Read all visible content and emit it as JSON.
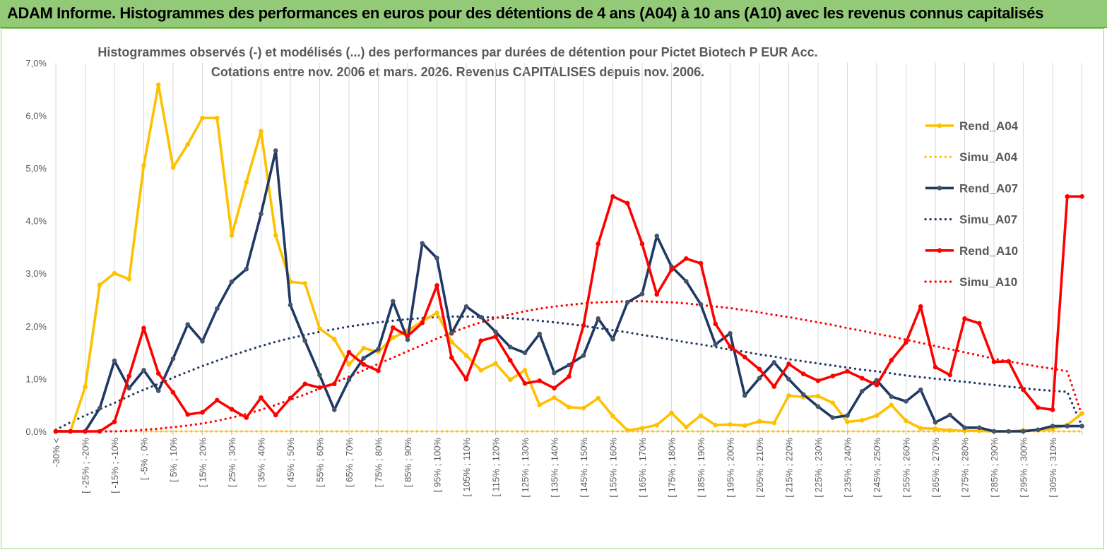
{
  "banner": {
    "title": "ADAM Informe. Histogrammes des performances en euros pour des détentions de 4 ans (A04) à 10 ans (A10) avec les revenus connus capitalisés"
  },
  "chart_data": {
    "type": "line",
    "title_line1": "Histogrammes observés (-) et modélisés (...)  des performances par durées de détention pour Pictet Biotech P EUR Acc.",
    "title_line2": "Cotations entre nov. 2006 et mars. 2026.  Revenus CAPITALISES depuis nov. 2006.",
    "xlabel": "",
    "ylabel": "",
    "ylim": [
      0,
      7
    ],
    "y_ticks": [
      "0,0%",
      "1,0%",
      "2,0%",
      "3,0%",
      "4,0%",
      "5,0%",
      "6,0%",
      "7,0%"
    ],
    "grid": "vertical",
    "legend_position": "right",
    "x_labels": [
      "-30% <",
      "[ -25% ; -20%",
      "[ -15% ; -10%",
      "[ -5% ; 0%",
      "[ 5% ; 10%",
      "[ 15% ; 20%",
      "[ 25% ; 30%",
      "[ 35% ; 40%",
      "[ 45% ; 50%",
      "[ 55% ; 60%",
      "[ 65% ; 70%",
      "[ 75% ; 80%",
      "[ 85% ; 90%",
      "[ 95% ; 100%",
      "[ 105% ; 110%",
      "[ 115% ; 120%",
      "[ 125% ; 130%",
      "[ 135% ; 140%",
      "[ 145% ; 150%",
      "[ 155% ; 160%",
      "[ 165% ; 170%",
      "[ 175% ; 180%",
      "[ 185% ; 190%",
      "[ 195% ; 200%",
      "[ 205% ; 210%",
      "[ 215% ; 220%",
      "[ 225% ; 230%",
      "[ 235% ; 240%",
      "[ 245% ; 250%",
      "[ 255% ; 260%",
      "[ 265% ; 270%",
      "[ 275% ; 280%",
      "[ 285% ; 290%",
      "[ 295% ; 300%",
      "[ 305% ; 310%"
    ],
    "series": [
      {
        "name": "Rend_A04",
        "style": "solid",
        "color": "#ffc000",
        "values": [
          0,
          0,
          0.84,
          2.78,
          3,
          2.89,
          5.05,
          6.58,
          5.01,
          5.45,
          5.95,
          5.95,
          3.72,
          4.73,
          5.7,
          3.72,
          2.84,
          2.81,
          1.95,
          1.75,
          1.27,
          1.58,
          1.51,
          1.78,
          1.91,
          2.09,
          2.25,
          1.7,
          1.44,
          1.16,
          1.29,
          0.98,
          1.16,
          0.5,
          0.64,
          0.46,
          0.44,
          0.63,
          0.29,
          0.02,
          0.06,
          0.12,
          0.35,
          0.08,
          0.3,
          0.12,
          0.13,
          0.11,
          0.19,
          0.16,
          0.68,
          0.65,
          0.67,
          0.54,
          0.18,
          0.21,
          0.3,
          0.5,
          0.2,
          0.06,
          0.05,
          0.02,
          0.01,
          0.01,
          0,
          0,
          0.02,
          0.02,
          0.05,
          0.12,
          0.34
        ]
      },
      {
        "name": "Simu_A04",
        "style": "dotted",
        "color": "#ffc000",
        "values": [
          0,
          0,
          0,
          0,
          0,
          0,
          0,
          0,
          0,
          0,
          0,
          0,
          0,
          0,
          0,
          0,
          0,
          0,
          0,
          0,
          0,
          0,
          0,
          0,
          0,
          0,
          0,
          0,
          0,
          0,
          0,
          0,
          0,
          0,
          0,
          0,
          0,
          0,
          0,
          0,
          0,
          0,
          0,
          0,
          0,
          0,
          0,
          0,
          0,
          0,
          0,
          0,
          0,
          0,
          0,
          0,
          0,
          0,
          0,
          0,
          0,
          0,
          0,
          0,
          0,
          0,
          0,
          0,
          0,
          0,
          0
        ]
      },
      {
        "name": "Rend_A07",
        "style": "solid",
        "color": "#1f3864",
        "values": [
          0,
          0,
          0,
          0.44,
          1.34,
          0.82,
          1.16,
          0.77,
          1.38,
          2.03,
          1.71,
          2.33,
          2.84,
          3.08,
          4.13,
          5.33,
          2.4,
          1.72,
          1.07,
          0.41,
          0.98,
          1.39,
          1.56,
          2.47,
          1.74,
          3.57,
          3.29,
          1.86,
          2.37,
          2.17,
          1.89,
          1.6,
          1.49,
          1.85,
          1.11,
          1.26,
          1.44,
          2.14,
          1.75,
          2.45,
          2.61,
          3.71,
          3.13,
          2.85,
          2.41,
          1.65,
          1.86,
          0.68,
          1.01,
          1.31,
          0.99,
          0.7,
          0.47,
          0.26,
          0.3,
          0.76,
          0.97,
          0.66,
          0.57,
          0.79,
          0.17,
          0.31,
          0.07,
          0.07,
          0,
          0,
          0,
          0.03,
          0.1,
          0.1,
          0.1
        ]
      },
      {
        "name": "Simu_A07",
        "style": "dotted",
        "color": "#1f3864",
        "values": [
          0.03,
          0.17,
          0.3,
          0.42,
          0.54,
          0.67,
          0.79,
          0.9,
          1.02,
          1.13,
          1.24,
          1.34,
          1.44,
          1.53,
          1.62,
          1.7,
          1.77,
          1.83,
          1.89,
          1.94,
          1.99,
          2.03,
          2.07,
          2.1,
          2.13,
          2.15,
          2.17,
          2.18,
          2.18,
          2.17,
          2.16,
          2.15,
          2.13,
          2.1,
          2.07,
          2.04,
          2.0,
          1.96,
          1.92,
          1.88,
          1.83,
          1.79,
          1.74,
          1.69,
          1.65,
          1.6,
          1.55,
          1.51,
          1.46,
          1.42,
          1.37,
          1.33,
          1.29,
          1.25,
          1.21,
          1.17,
          1.14,
          1.1,
          1.06,
          1.03,
          1.0,
          0.97,
          0.94,
          0.91,
          0.88,
          0.85,
          0.82,
          0.79,
          0.77,
          0.75,
          0.1
        ]
      },
      {
        "name": "Rend_A10",
        "style": "solid",
        "color": "#ff0000",
        "values": [
          0,
          0,
          0,
          0,
          0.18,
          1.05,
          1.96,
          1.1,
          0.74,
          0.32,
          0.36,
          0.59,
          0.42,
          0.26,
          0.64,
          0.31,
          0.63,
          0.9,
          0.83,
          0.9,
          1.5,
          1.27,
          1.15,
          1.97,
          1.81,
          2.06,
          2.77,
          1.4,
          0.99,
          1.72,
          1.8,
          1.35,
          0.91,
          0.96,
          0.82,
          1.04,
          2.01,
          3.56,
          4.46,
          4.33,
          3.56,
          2.6,
          3.07,
          3.28,
          3.19,
          2.04,
          1.61,
          1.41,
          1.18,
          0.85,
          1.28,
          1.09,
          0.96,
          1.05,
          1.14,
          1.01,
          0.88,
          1.35,
          1.69,
          2.37,
          1.22,
          1.07,
          2.14,
          2.05,
          1.32,
          1.33,
          0.79,
          0.45,
          0.41,
          4.46,
          4.46
        ]
      },
      {
        "name": "Simu_A10",
        "style": "dotted",
        "color": "#ff0000",
        "values": [
          0,
          0,
          0,
          0,
          0,
          0.01,
          0.03,
          0.05,
          0.08,
          0.11,
          0.15,
          0.2,
          0.26,
          0.33,
          0.41,
          0.5,
          0.6,
          0.7,
          0.81,
          0.92,
          1.04,
          1.16,
          1.28,
          1.4,
          1.52,
          1.64,
          1.76,
          1.87,
          1.98,
          2.07,
          2.15,
          2.22,
          2.28,
          2.33,
          2.37,
          2.4,
          2.43,
          2.45,
          2.46,
          2.47,
          2.47,
          2.46,
          2.45,
          2.43,
          2.4,
          2.37,
          2.34,
          2.3,
          2.26,
          2.21,
          2.17,
          2.12,
          2.07,
          2.02,
          1.96,
          1.91,
          1.85,
          1.8,
          1.74,
          1.68,
          1.62,
          1.56,
          1.5,
          1.44,
          1.38,
          1.33,
          1.28,
          1.23,
          1.19,
          1.14,
          0.3
        ]
      }
    ]
  }
}
